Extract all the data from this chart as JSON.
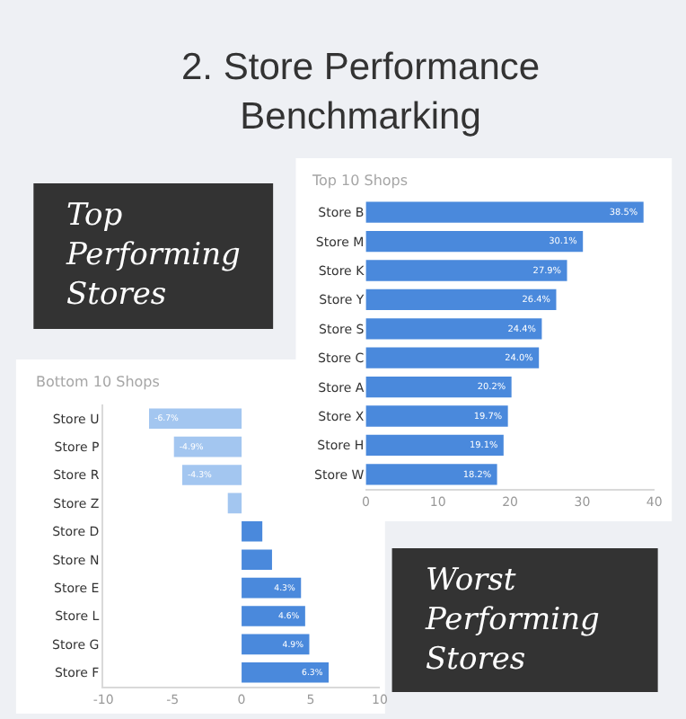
{
  "chart_data": [
    {
      "type": "other",
      "title": "2. Store Performance Benchmarking",
      "annotations": [
        "Top Performing Stores",
        "Worst Performing Stores"
      ]
    },
    {
      "type": "bar",
      "orientation": "horizontal",
      "title": "Top 10 Shops",
      "categories": [
        "Store B",
        "Store M",
        "Store K",
        "Store Y",
        "Store S",
        "Store C",
        "Store A",
        "Store X",
        "Store H",
        "Store W"
      ],
      "series": [
        {
          "color": "#4a89dc",
          "values": [
            38.5,
            30.1,
            27.9,
            26.4,
            24.4,
            24.0,
            20.2,
            19.7,
            19.1,
            18.2
          ],
          "value_labels": [
            "38.5%",
            "30.1%",
            "27.9%",
            "26.4%",
            "24.4%",
            "24.0%",
            "20.2%",
            "19.7%",
            "19.1%",
            "18.2%"
          ]
        }
      ],
      "xlim": [
        0,
        40
      ],
      "xticks": [
        0,
        10,
        20,
        30,
        40
      ],
      "grid": false
    },
    {
      "type": "bar",
      "orientation": "horizontal",
      "title": "Bottom 10 Shops",
      "categories": [
        "Store U",
        "Store P",
        "Store R",
        "Store Z",
        "Store D",
        "Store N",
        "Store E",
        "Store L",
        "Store G",
        "Store F"
      ],
      "series": [
        {
          "colors": [
            "#a3c6f0",
            "#a3c6f0",
            "#a3c6f0",
            "#a3c6f0",
            "#4a89dc",
            "#4a89dc",
            "#4a89dc",
            "#4a89dc",
            "#4a89dc",
            "#4a89dc"
          ],
          "values": [
            -6.7,
            -4.9,
            -4.3,
            -1.0,
            1.5,
            2.2,
            4.3,
            4.6,
            4.9,
            6.3
          ],
          "value_labels": [
            "-6.7%",
            "-4.9%",
            "-4.3%",
            null,
            null,
            null,
            "4.3%",
            "4.6%",
            "4.9%",
            "6.3%"
          ]
        }
      ],
      "xlim": [
        -10,
        10
      ],
      "xticks": [
        -10,
        -5,
        0,
        5,
        10
      ],
      "grid": false
    }
  ]
}
